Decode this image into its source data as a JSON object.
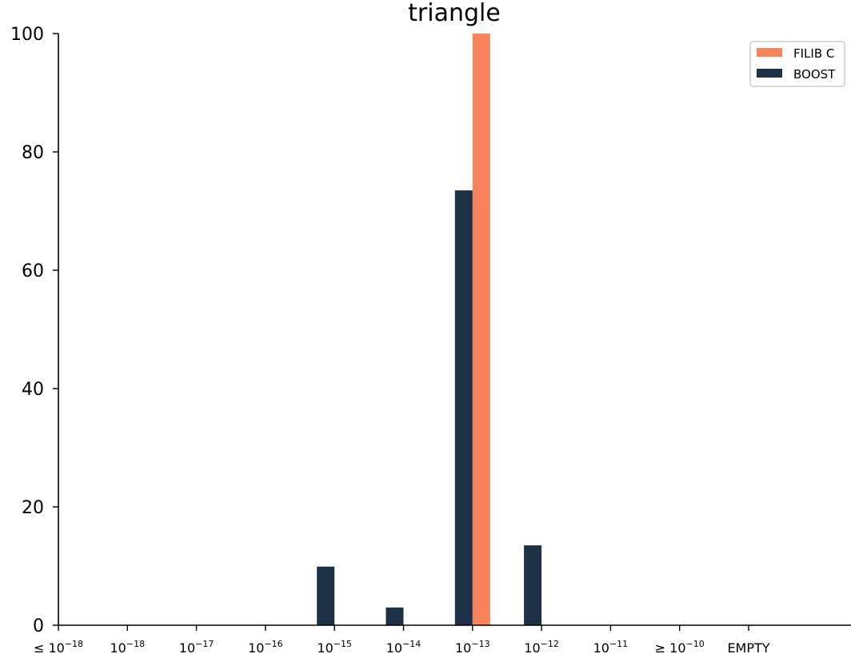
{
  "chart_data": {
    "type": "bar",
    "title": "triangle",
    "xlabel": "",
    "ylabel": "",
    "ylim": [
      0,
      100
    ],
    "yticks": [
      0,
      20,
      40,
      60,
      80,
      100
    ],
    "categories": [
      {
        "prefix": "≤ ",
        "base": "10",
        "exp": "−18"
      },
      {
        "prefix": "",
        "base": "10",
        "exp": "−18"
      },
      {
        "prefix": "",
        "base": "10",
        "exp": "−17"
      },
      {
        "prefix": "",
        "base": "10",
        "exp": "−16"
      },
      {
        "prefix": "",
        "base": "10",
        "exp": "−15"
      },
      {
        "prefix": "",
        "base": "10",
        "exp": "−14"
      },
      {
        "prefix": "",
        "base": "10",
        "exp": "−13"
      },
      {
        "prefix": "",
        "base": "10",
        "exp": "−12"
      },
      {
        "prefix": "",
        "base": "10",
        "exp": "−11"
      },
      {
        "prefix": "≥ ",
        "base": "10",
        "exp": "−10"
      },
      {
        "prefix": "",
        "base": "EMPTY",
        "exp": ""
      }
    ],
    "legend_position": "top-right",
    "series": [
      {
        "name": "FILIB C",
        "color": "#f7845a",
        "values": [
          0,
          0,
          0,
          0,
          0,
          0,
          100,
          0,
          0,
          0,
          0
        ]
      },
      {
        "name": "BOOST",
        "color": "#1c3046",
        "values": [
          0,
          0,
          0,
          0,
          9.9,
          3.0,
          73.5,
          13.5,
          0,
          0,
          0
        ]
      }
    ]
  }
}
